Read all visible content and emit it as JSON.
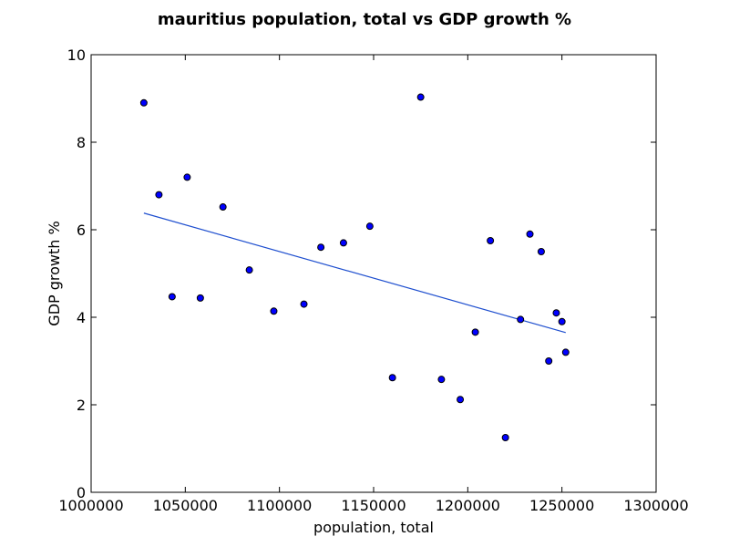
{
  "chart_data": {
    "type": "scatter",
    "title": "mauritius population, total vs GDP growth %",
    "xlabel": "population, total",
    "ylabel": "GDP growth %",
    "xlim": [
      1000000,
      1300000
    ],
    "ylim": [
      0,
      10
    ],
    "xticks": [
      1000000,
      1050000,
      1100000,
      1150000,
      1200000,
      1250000,
      1300000
    ],
    "yticks": [
      0,
      2,
      4,
      6,
      8,
      10
    ],
    "grid": false,
    "point_color": "#0000ff",
    "line_color": "#1f4fcf",
    "points": [
      {
        "x": 1028000,
        "y": 8.9
      },
      {
        "x": 1036000,
        "y": 6.8
      },
      {
        "x": 1043000,
        "y": 4.47
      },
      {
        "x": 1051000,
        "y": 7.2
      },
      {
        "x": 1058000,
        "y": 4.44
      },
      {
        "x": 1070000,
        "y": 6.52
      },
      {
        "x": 1084000,
        "y": 5.08
      },
      {
        "x": 1097000,
        "y": 4.14
      },
      {
        "x": 1113000,
        "y": 4.3
      },
      {
        "x": 1122000,
        "y": 5.6
      },
      {
        "x": 1134000,
        "y": 5.7
      },
      {
        "x": 1148000,
        "y": 6.08
      },
      {
        "x": 1160000,
        "y": 2.62
      },
      {
        "x": 1175000,
        "y": 9.03
      },
      {
        "x": 1186000,
        "y": 2.58
      },
      {
        "x": 1196000,
        "y": 2.12
      },
      {
        "x": 1204000,
        "y": 3.66
      },
      {
        "x": 1212000,
        "y": 5.75
      },
      {
        "x": 1220000,
        "y": 1.25
      },
      {
        "x": 1228000,
        "y": 3.95
      },
      {
        "x": 1233000,
        "y": 5.9
      },
      {
        "x": 1239000,
        "y": 5.5
      },
      {
        "x": 1243000,
        "y": 3.0
      },
      {
        "x": 1247000,
        "y": 4.1
      },
      {
        "x": 1250000,
        "y": 3.9
      },
      {
        "x": 1252000,
        "y": 3.2
      }
    ],
    "trend_line": {
      "x": [
        1028000,
        1252000
      ],
      "y": [
        6.38,
        3.65
      ]
    }
  }
}
